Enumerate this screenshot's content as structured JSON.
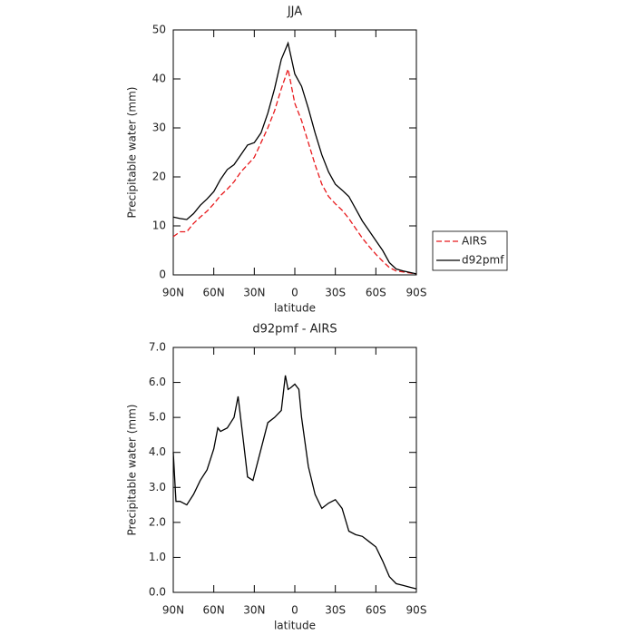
{
  "chart_data": [
    {
      "type": "line",
      "title": "JJA",
      "ylabel": "Precipitable water (mm)",
      "xlabel": "latitude",
      "x": [
        90,
        85,
        80,
        75,
        70,
        65,
        60,
        55,
        50,
        45,
        40,
        35,
        30,
        25,
        20,
        15,
        10,
        5,
        0,
        -5,
        -10,
        -15,
        -20,
        -25,
        -30,
        -35,
        -40,
        -45,
        -50,
        -55,
        -60,
        -65,
        -70,
        -75,
        -80,
        -85,
        -90
      ],
      "series": [
        {
          "name": "AIRS",
          "color": "#e8191c",
          "dash": true,
          "values": [
            7.8,
            8.8,
            8.8,
            10.5,
            11.8,
            13,
            14.5,
            16.2,
            17.5,
            19,
            21,
            22.5,
            24,
            27,
            30,
            33.5,
            38,
            42,
            35,
            31.5,
            27,
            22.5,
            18.5,
            16,
            14.5,
            13.2,
            11.5,
            9.5,
            7.5,
            5.8,
            4.2,
            2.8,
            1.5,
            0.8,
            0.6,
            0.4,
            0.2
          ]
        },
        {
          "name": "d92pmf",
          "color": "#000000",
          "dash": false,
          "values": [
            11.8,
            11.5,
            11.3,
            12.5,
            14.2,
            15.5,
            17,
            19.5,
            21.5,
            22.5,
            24.5,
            26.5,
            27,
            29,
            33,
            38,
            44,
            47.3,
            41,
            38.5,
            34,
            29,
            24.5,
            21,
            18.5,
            17.3,
            16,
            13.5,
            11,
            9,
            7,
            5,
            2.5,
            1.2,
            0.8,
            0.5,
            0.2
          ]
        }
      ],
      "xlim": [
        90,
        -90
      ],
      "xticks": [
        {
          "value": 90,
          "label": "90N"
        },
        {
          "value": 60,
          "label": "60N"
        },
        {
          "value": 30,
          "label": "30N"
        },
        0,
        {
          "value": -30,
          "label": "30S"
        },
        {
          "value": -60,
          "label": "60S"
        },
        {
          "value": -90,
          "label": "90S"
        }
      ],
      "ylim": [
        0,
        50
      ],
      "yticks": [
        0,
        10,
        20,
        30,
        40,
        50
      ],
      "legend": "right"
    },
    {
      "type": "line",
      "title": "d92pmf - AIRS",
      "ylabel": "Precipitable water (mm)",
      "xlabel": "latitude",
      "x": [
        90,
        88,
        85,
        80,
        75,
        70,
        65,
        60,
        57,
        55,
        50,
        45,
        42,
        38,
        35,
        31,
        27,
        23,
        20,
        15,
        10,
        7,
        5,
        3,
        0,
        -3,
        -5,
        -10,
        -15,
        -20,
        -25,
        -30,
        -35,
        -40,
        -45,
        -50,
        -55,
        -60,
        -65,
        -70,
        -75,
        -80,
        -85,
        -90
      ],
      "series": [
        {
          "name": "d92pmf - AIRS",
          "color": "#000000",
          "dash": false,
          "values": [
            4.0,
            2.6,
            2.6,
            2.5,
            2.8,
            3.2,
            3.5,
            4.1,
            4.7,
            4.6,
            4.7,
            5.0,
            5.6,
            4.3,
            3.3,
            3.2,
            3.8,
            4.4,
            4.85,
            5.0,
            5.2,
            6.2,
            5.8,
            5.85,
            5.95,
            5.8,
            5.0,
            3.6,
            2.8,
            2.4,
            2.55,
            2.65,
            2.4,
            1.75,
            1.65,
            1.6,
            1.45,
            1.3,
            0.9,
            0.45,
            0.25,
            0.2,
            0.15,
            0.1
          ]
        }
      ],
      "xlim": [
        90,
        -90
      ],
      "xticks": [
        {
          "value": 90,
          "label": "90N"
        },
        {
          "value": 60,
          "label": "60N"
        },
        {
          "value": 30,
          "label": "30N"
        },
        0,
        {
          "value": -30,
          "label": "30S"
        },
        {
          "value": -60,
          "label": "60S"
        },
        {
          "value": -90,
          "label": "90S"
        }
      ],
      "ylim": [
        0,
        7
      ],
      "yticks": [
        {
          "value": 0,
          "label": "0.0"
        },
        {
          "value": 1,
          "label": "1.0"
        },
        {
          "value": 2,
          "label": "2.0"
        },
        {
          "value": 3,
          "label": "3.0"
        },
        {
          "value": 4,
          "label": "4.0"
        },
        {
          "value": 5,
          "label": "5.0"
        },
        {
          "value": 6,
          "label": "6.0"
        },
        {
          "value": 7,
          "label": "7.0"
        }
      ]
    }
  ]
}
